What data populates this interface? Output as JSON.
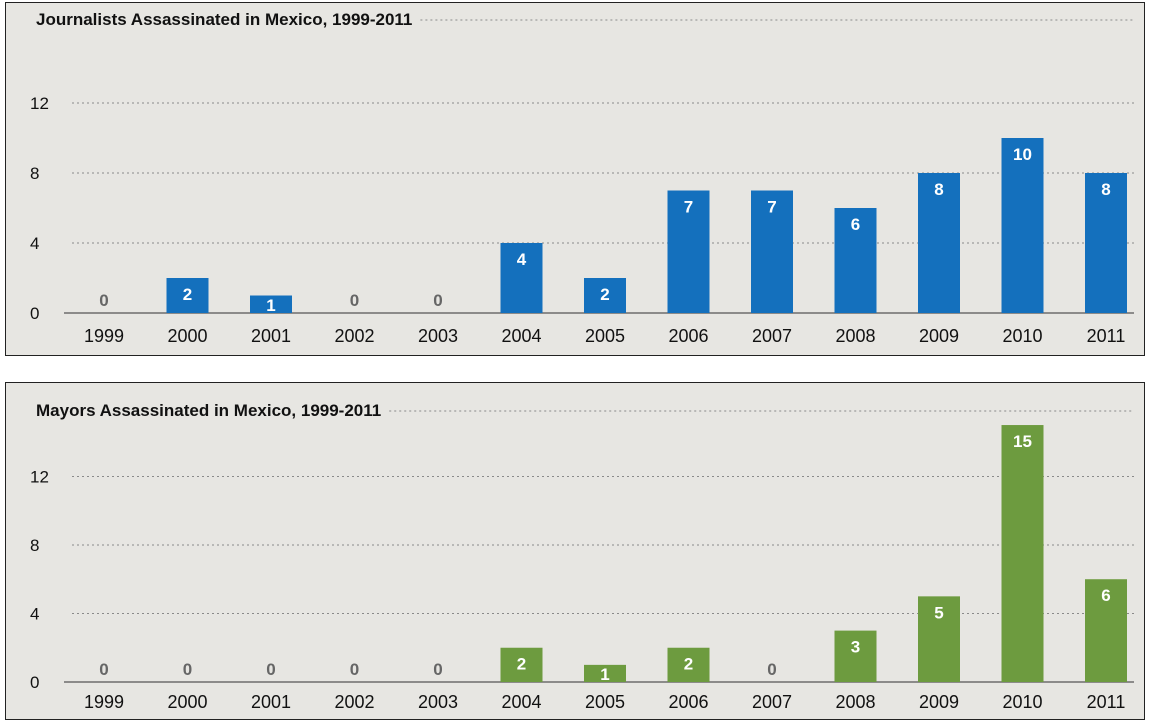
{
  "chart_data": [
    {
      "type": "bar",
      "title": "Journalists Assassinated in Mexico, 1999-2011",
      "categories": [
        "1999",
        "2000",
        "2001",
        "2002",
        "2003",
        "2004",
        "2005",
        "2006",
        "2007",
        "2008",
        "2009",
        "2010",
        "2011"
      ],
      "values": [
        0,
        2,
        1,
        0,
        0,
        4,
        2,
        7,
        7,
        6,
        8,
        10,
        8
      ],
      "yticks": [
        0,
        4,
        8,
        12
      ],
      "ylim": [
        0,
        12
      ],
      "grid": true,
      "color": "#1470bd"
    },
    {
      "type": "bar",
      "title": "Mayors Assassinated in Mexico, 1999-2011",
      "categories": [
        "1999",
        "2000",
        "2001",
        "2002",
        "2003",
        "2004",
        "2005",
        "2006",
        "2007",
        "2008",
        "2009",
        "2010",
        "2011"
      ],
      "values": [
        0,
        0,
        0,
        0,
        0,
        2,
        1,
        2,
        0,
        3,
        5,
        15,
        6
      ],
      "yticks": [
        0,
        4,
        8,
        12
      ],
      "ylim": [
        0,
        15
      ],
      "grid": true,
      "color": "#6d9b3f"
    }
  ]
}
